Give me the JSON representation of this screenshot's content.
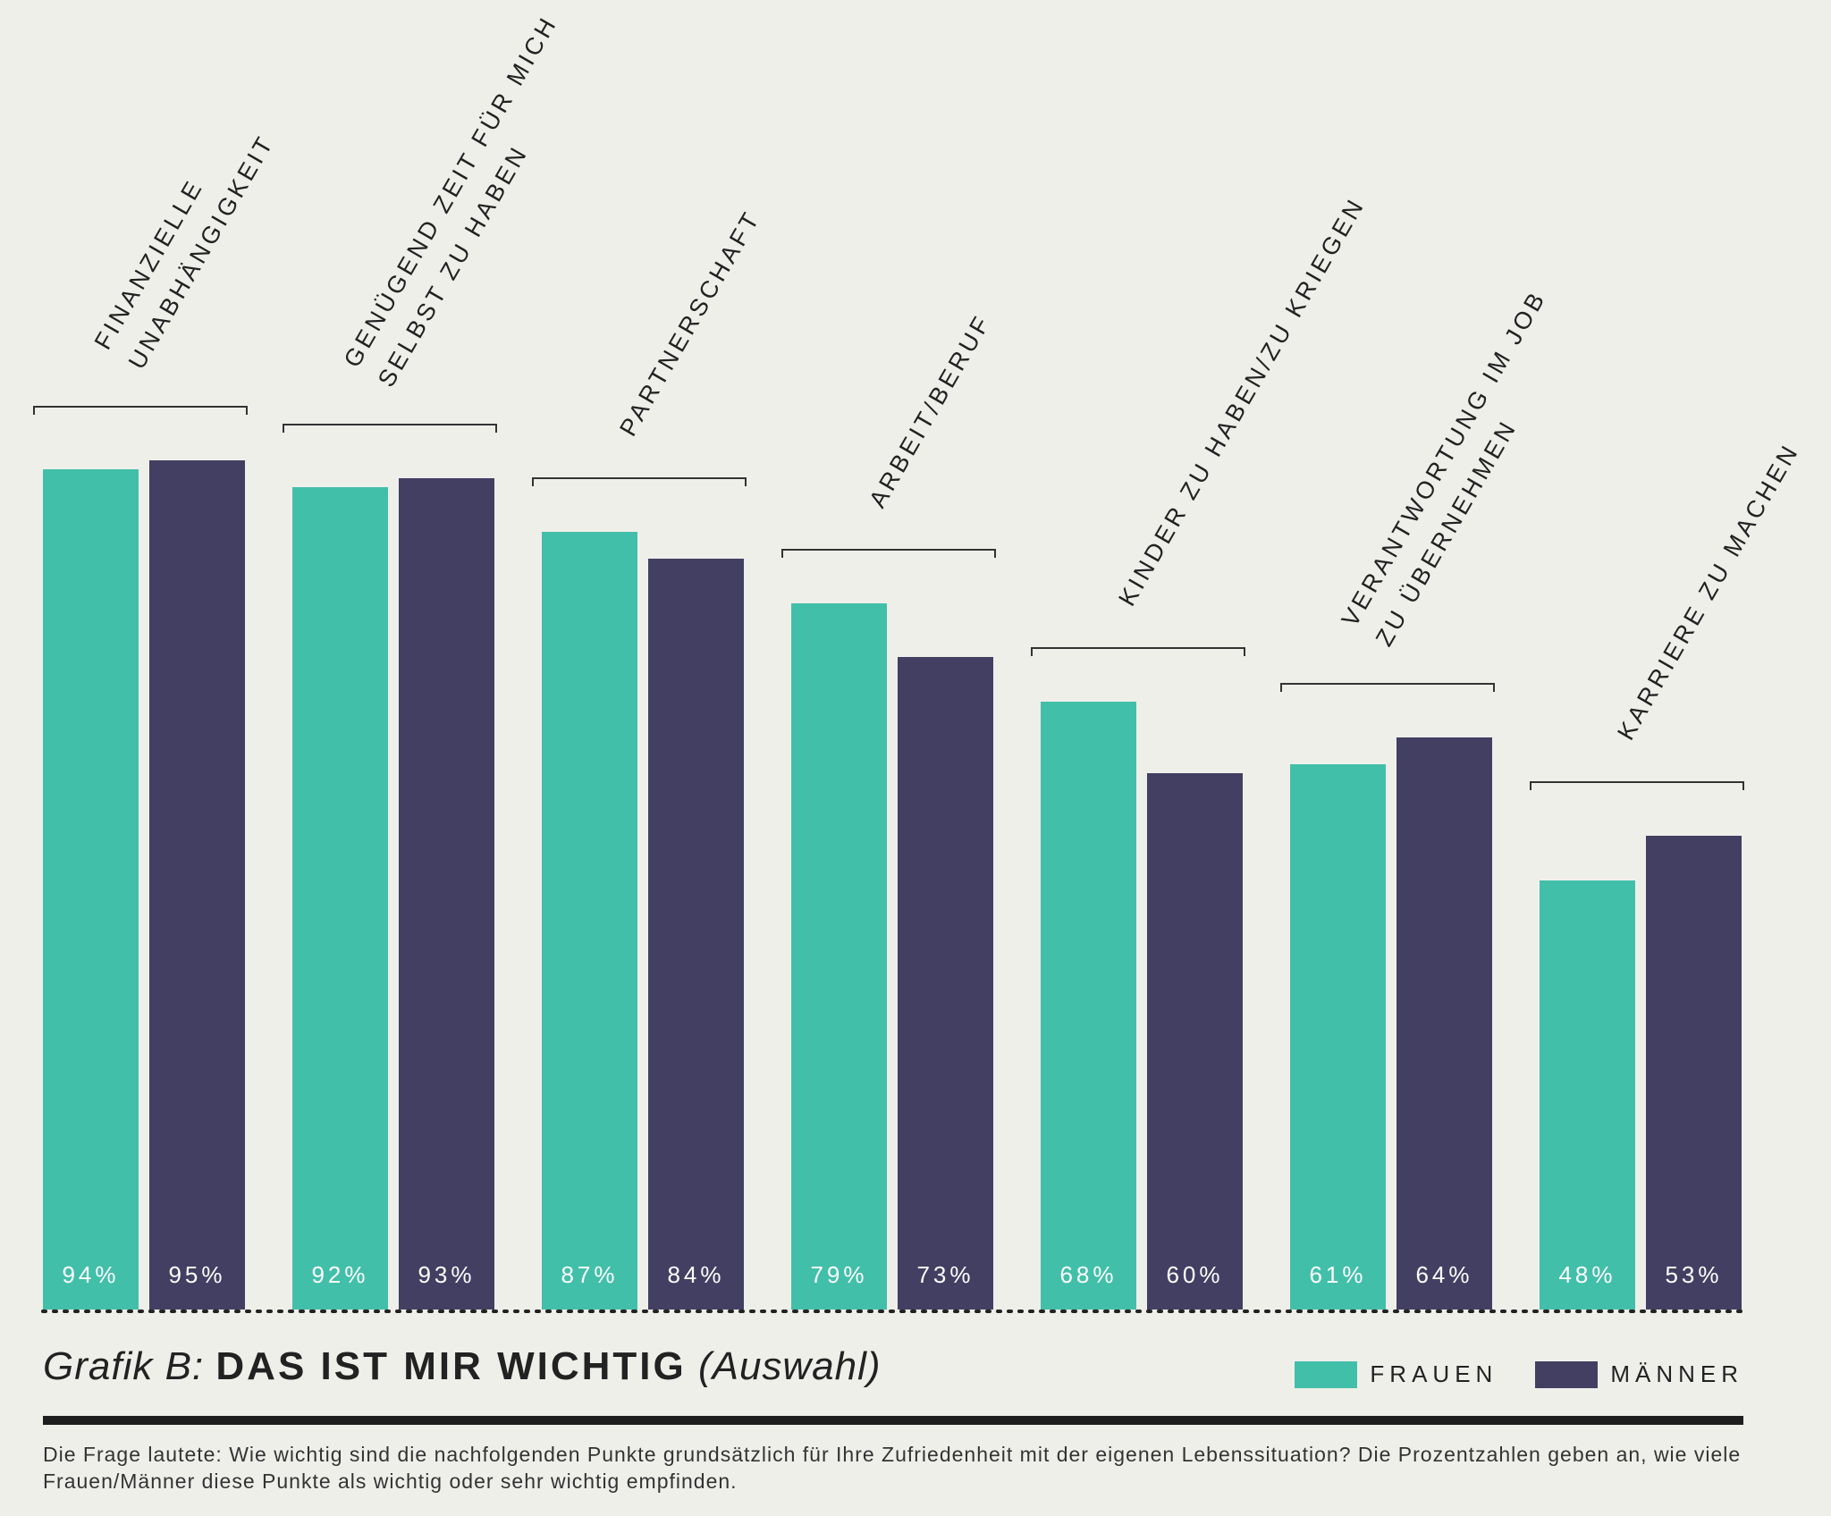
{
  "chart_data": {
    "type": "bar",
    "categories": [
      "FINANZIELLE UNABHÄNGIGKEIT",
      "GENÜGEND ZEIT FÜR MICH SELBST ZU HABEN",
      "PARTNERSCHAFT",
      "ARBEIT/BERUF",
      "KINDER ZU HABEN/ZU KRIEGEN",
      "VERANTWORTUNG IM JOB ZU ÜBERNEHMEN",
      "KARRIERE ZU MACHEN"
    ],
    "category_lines": [
      [
        "FINANZIELLE",
        "UNABHÄNGIGKEIT"
      ],
      [
        "GENÜGEND ZEIT FÜR MICH",
        "SELBST ZU HABEN"
      ],
      [
        "PARTNERSCHAFT"
      ],
      [
        "ARBEIT/BERUF"
      ],
      [
        "KINDER ZU HABEN/ZU KRIEGEN"
      ],
      [
        "VERANTWORTUNG IM JOB",
        "ZU ÜBERNEHMEN"
      ],
      [
        "KARRIERE ZU MACHEN"
      ]
    ],
    "series": [
      {
        "name": "FRAUEN",
        "color": "#42bfa9",
        "values": [
          94,
          92,
          87,
          79,
          68,
          61,
          48
        ],
        "labels": [
          "94%",
          "92%",
          "87%",
          "79%",
          "68%",
          "61%",
          "48%"
        ]
      },
      {
        "name": "MÄNNER",
        "color": "#423f63",
        "values": [
          95,
          93,
          84,
          73,
          60,
          64,
          53
        ],
        "labels": [
          "95%",
          "93%",
          "84%",
          "73%",
          "60%",
          "64%",
          "53%"
        ]
      }
    ],
    "ylim": [
      0,
      100
    ],
    "legend": "bottom-right",
    "grid": false
  },
  "title": {
    "prefix": "Grafik B:",
    "main": "DAS IST MIR WICHTIG",
    "suffix": "(Auswahl)"
  },
  "legend": [
    {
      "label": "FRAUEN",
      "color": "#42bfa9"
    },
    {
      "label": "MÄNNER",
      "color": "#423f63"
    }
  ],
  "footnote": "Die Frage lautete: Wie wichtig sind die nachfolgenden Punkte grundsätzlich für Ihre Zufriedenheit mit der eigenen Lebenssituation? Die Prozentzahlen geben an, wie viele Frauen/Männer diese Punkte als wichtig oder sehr wichtig empfinden."
}
